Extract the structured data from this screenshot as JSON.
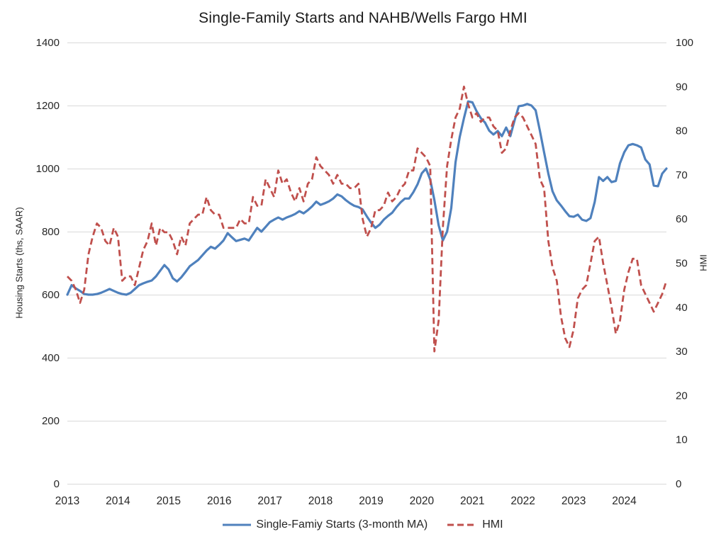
{
  "chart_data": {
    "type": "line",
    "title": "Single-Family Starts and NAHB/Wells Fargo HMI",
    "x_frequency": "monthly",
    "x_start": "2013-01",
    "x_end": "2024-11",
    "x_tick_labels": [
      "2013",
      "2014",
      "2015",
      "2016",
      "2017",
      "2018",
      "2019",
      "2020",
      "2021",
      "2022",
      "2023",
      "2024"
    ],
    "left_axis": {
      "label": "Housing Starts (ths, SAAR)",
      "min": 0,
      "max": 1400,
      "tick_step": 200,
      "ticks": [
        0,
        200,
        400,
        600,
        800,
        1000,
        1200,
        1400
      ]
    },
    "right_axis": {
      "label": "HMI",
      "min": 0,
      "max": 100,
      "tick_step": 10,
      "ticks": [
        0,
        10,
        20,
        30,
        40,
        50,
        60,
        70,
        80,
        90,
        100
      ]
    },
    "grid": "horizontal-major",
    "legend_position": "bottom",
    "colors": {
      "starts_line": "#4F81BD",
      "hmi_line": "#C0504D",
      "gridline": "#D9D9D9",
      "text": "#262626",
      "background": "#FFFFFF"
    },
    "series": [
      {
        "name": "Single-Famiy Starts (3-month MA)",
        "axis": "left",
        "style": "solid",
        "color": "#4F81BD",
        "values": [
          600,
          630,
          620,
          612,
          602,
          600,
          600,
          602,
          606,
          612,
          618,
          612,
          606,
          602,
          600,
          606,
          618,
          630,
          636,
          641,
          645,
          658,
          676,
          694,
          680,
          652,
          642,
          655,
          672,
          690,
          700,
          710,
          725,
          740,
          752,
          746,
          758,
          772,
          795,
          782,
          770,
          774,
          778,
          772,
          792,
          812,
          800,
          815,
          830,
          838,
          845,
          838,
          845,
          850,
          856,
          865,
          858,
          868,
          880,
          895,
          885,
          890,
          896,
          905,
          918,
          912,
          900,
          890,
          882,
          878,
          870,
          848,
          828,
          812,
          822,
          838,
          850,
          860,
          878,
          893,
          905,
          905,
          925,
          950,
          985,
          1000,
          965,
          900,
          820,
          772,
          800,
          875,
          1020,
          1100,
          1160,
          1213,
          1210,
          1182,
          1160,
          1146,
          1120,
          1108,
          1119,
          1103,
          1130,
          1103,
          1153,
          1198,
          1200,
          1205,
          1200,
          1185,
          1120,
          1052,
          984,
          928,
          899,
          883,
          865,
          849,
          847,
          854,
          838,
          834,
          843,
          894,
          973,
          961,
          973,
          957,
          961,
          1017,
          1052,
          1074,
          1078,
          1074,
          1067,
          1029,
          1013,
          946,
          944,
          984,
          1000
        ]
      },
      {
        "name": "HMI",
        "axis": "right",
        "style": "dashed",
        "color": "#C0504D",
        "values": [
          47,
          46,
          44,
          41,
          44,
          52,
          56,
          59,
          58,
          55,
          54,
          58,
          56,
          46,
          47,
          47,
          45,
          49,
          53,
          55,
          59,
          54,
          58,
          57,
          57,
          55,
          52,
          56,
          54,
          59,
          60,
          61,
          61,
          65,
          62,
          61,
          61,
          58,
          58,
          58,
          58,
          60,
          59,
          59,
          65,
          63,
          63,
          69,
          67,
          65,
          71,
          68,
          69,
          66,
          64,
          67,
          64,
          68,
          69,
          74,
          72,
          71,
          70,
          68,
          70,
          68,
          68,
          67,
          67,
          68,
          60,
          56,
          58,
          62,
          62,
          63,
          66,
          64,
          65,
          67,
          68,
          71,
          71,
          76,
          75,
          74,
          72,
          30,
          37,
          58,
          72,
          78,
          83,
          85,
          90,
          86,
          83,
          84,
          82,
          83,
          83,
          81,
          80,
          75,
          76,
          80,
          83,
          84,
          83,
          81,
          79,
          77,
          69,
          67,
          55,
          49,
          46,
          38,
          33,
          31,
          35,
          42,
          44,
          45,
          50,
          55,
          56,
          50,
          45,
          40,
          34,
          37,
          44,
          48,
          51,
          51,
          45,
          43,
          41,
          39,
          41,
          43,
          46
        ]
      }
    ]
  }
}
